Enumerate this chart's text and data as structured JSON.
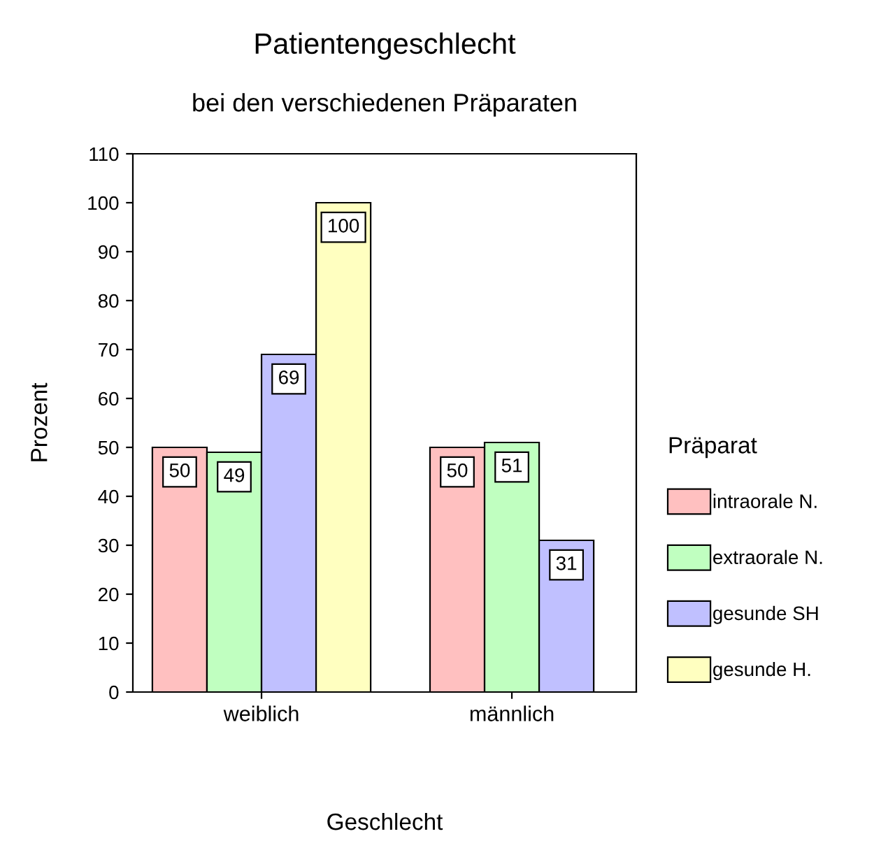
{
  "chart_data": {
    "type": "bar",
    "title": "Patientengeschlecht",
    "subtitle": "bei den verschiedenen Präparaten",
    "xlabel": "Geschlecht",
    "ylabel": "Prozent",
    "legend_title": "Präparat",
    "categories": [
      "weiblich",
      "männlich"
    ],
    "series": [
      {
        "name": "intraorale N.",
        "color": "#ffc0c0",
        "values": [
          50,
          50
        ]
      },
      {
        "name": "extraorale N.",
        "color": "#c0ffc0",
        "values": [
          49,
          51
        ]
      },
      {
        "name": "gesunde SH",
        "color": "#c0c0ff",
        "values": [
          69,
          31
        ]
      },
      {
        "name": "gesunde H.",
        "color": "#ffffc0",
        "values": [
          100,
          null
        ]
      }
    ],
    "ylim": [
      0,
      110
    ],
    "yticks": [
      0,
      10,
      20,
      30,
      40,
      50,
      60,
      70,
      80,
      90,
      100,
      110
    ],
    "data_labels": true,
    "legend": "right",
    "grid": false
  }
}
